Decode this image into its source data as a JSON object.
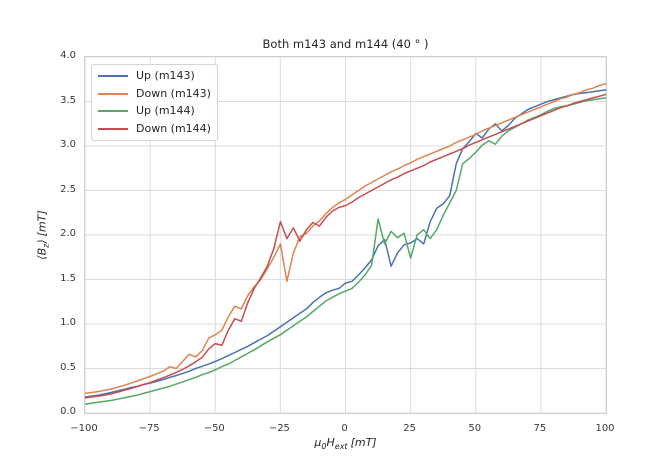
{
  "chart_data": {
    "type": "line",
    "title": "Both m143 and m144 (40 ° )",
    "xlabel": "μ0 H_ext [mT]",
    "ylabel": "⟨B_z⟩ [mT]",
    "xlabel_parts": {
      "mu": "μ",
      "mu_sub": "0",
      "H": "H",
      "H_sub": "ext",
      "unit": "[mT]"
    },
    "ylabel_parts": {
      "open": "⟨B",
      "B_sub": "z",
      "close": "⟩",
      "unit": "[mT]"
    },
    "xlim": [
      -100,
      100
    ],
    "ylim": [
      0.0,
      4.0
    ],
    "grid": true,
    "legend_position": "upper left",
    "style": {
      "grid_color": "#dcdcdc",
      "spine_color": "#cfcfcf",
      "text_color": "#262626",
      "tick_text_color": "#3a3a3a",
      "background": "#ffffff"
    },
    "xticks": {
      "values": [
        -100,
        -75,
        -50,
        -25,
        0,
        25,
        50,
        75,
        100
      ],
      "labels": [
        "−100",
        "−75",
        "−50",
        "−25",
        "0",
        "25",
        "50",
        "75",
        "100"
      ]
    },
    "yticks": {
      "values": [
        0.0,
        0.5,
        1.0,
        1.5,
        2.0,
        2.5,
        3.0,
        3.5,
        4.0
      ],
      "labels": [
        "0.0",
        "0.5",
        "1.0",
        "1.5",
        "2.0",
        "2.5",
        "3.0",
        "3.5",
        "4.0"
      ]
    },
    "x": [
      -100,
      -97.5,
      -95,
      -92.5,
      -90,
      -87.5,
      -85,
      -82.5,
      -80,
      -77.5,
      -75,
      -72.5,
      -70,
      -67.5,
      -65,
      -62.5,
      -60,
      -57.5,
      -55,
      -52.5,
      -50,
      -47.5,
      -45,
      -42.5,
      -40,
      -37.5,
      -35,
      -32.5,
      -30,
      -27.5,
      -25,
      -22.5,
      -20,
      -17.5,
      -15,
      -12.5,
      -10,
      -7.5,
      -5,
      -2.5,
      0,
      2.5,
      5,
      7.5,
      10,
      12.5,
      15,
      17.5,
      20,
      22.5,
      25,
      27.5,
      30,
      32.5,
      35,
      37.5,
      40,
      42.5,
      45,
      47.5,
      50,
      52.5,
      55,
      57.5,
      60,
      62.5,
      65,
      67.5,
      70,
      72.5,
      75,
      77.5,
      80,
      82.5,
      85,
      87.5,
      90,
      92.5,
      95,
      97.5,
      100
    ],
    "series": [
      {
        "name": "Up (m143)",
        "color": "#4c72b0",
        "values": [
          0.18,
          0.19,
          0.2,
          0.215,
          0.23,
          0.25,
          0.265,
          0.285,
          0.3,
          0.32,
          0.335,
          0.355,
          0.375,
          0.4,
          0.42,
          0.445,
          0.47,
          0.5,
          0.525,
          0.55,
          0.58,
          0.61,
          0.645,
          0.68,
          0.715,
          0.75,
          0.79,
          0.83,
          0.87,
          0.92,
          0.97,
          1.02,
          1.07,
          1.12,
          1.17,
          1.24,
          1.3,
          1.35,
          1.38,
          1.4,
          1.46,
          1.48,
          1.55,
          1.63,
          1.72,
          1.88,
          1.95,
          1.65,
          1.8,
          1.89,
          1.91,
          1.96,
          1.9,
          2.15,
          2.3,
          2.35,
          2.44,
          2.8,
          2.97,
          3.05,
          3.14,
          3.09,
          3.19,
          3.25,
          3.17,
          3.23,
          3.31,
          3.36,
          3.41,
          3.44,
          3.47,
          3.5,
          3.52,
          3.54,
          3.56,
          3.58,
          3.59,
          3.6,
          3.61,
          3.62,
          3.63
        ]
      },
      {
        "name": "Down (m143)",
        "color": "#dd8452",
        "values": [
          0.22,
          0.23,
          0.24,
          0.255,
          0.27,
          0.29,
          0.31,
          0.335,
          0.36,
          0.385,
          0.41,
          0.44,
          0.47,
          0.52,
          0.5,
          0.58,
          0.66,
          0.63,
          0.7,
          0.84,
          0.88,
          0.93,
          1.08,
          1.2,
          1.17,
          1.32,
          1.42,
          1.5,
          1.62,
          1.75,
          1.9,
          1.48,
          1.8,
          1.98,
          2.02,
          2.1,
          2.16,
          2.24,
          2.31,
          2.36,
          2.4,
          2.45,
          2.5,
          2.55,
          2.59,
          2.63,
          2.67,
          2.71,
          2.74,
          2.78,
          2.81,
          2.85,
          2.88,
          2.91,
          2.94,
          2.97,
          3.0,
          3.04,
          3.07,
          3.1,
          3.13,
          3.17,
          3.2,
          3.23,
          3.26,
          3.29,
          3.32,
          3.35,
          3.38,
          3.41,
          3.44,
          3.47,
          3.5,
          3.53,
          3.55,
          3.58,
          3.6,
          3.63,
          3.65,
          3.68,
          3.7
        ]
      },
      {
        "name": "Up (m144)",
        "color": "#55a868",
        "values": [
          0.1,
          0.11,
          0.12,
          0.13,
          0.14,
          0.155,
          0.17,
          0.185,
          0.2,
          0.22,
          0.24,
          0.26,
          0.28,
          0.3,
          0.325,
          0.35,
          0.375,
          0.4,
          0.43,
          0.455,
          0.485,
          0.52,
          0.55,
          0.59,
          0.63,
          0.67,
          0.71,
          0.755,
          0.8,
          0.84,
          0.88,
          0.93,
          0.98,
          1.03,
          1.08,
          1.14,
          1.2,
          1.26,
          1.3,
          1.34,
          1.37,
          1.4,
          1.47,
          1.55,
          1.66,
          2.18,
          1.9,
          2.04,
          1.97,
          2.02,
          1.74,
          2.0,
          2.06,
          1.96,
          2.06,
          2.22,
          2.36,
          2.5,
          2.8,
          2.86,
          2.93,
          3.01,
          3.06,
          3.02,
          3.11,
          3.17,
          3.21,
          3.25,
          3.29,
          3.32,
          3.35,
          3.39,
          3.42,
          3.44,
          3.45,
          3.47,
          3.49,
          3.51,
          3.52,
          3.53,
          3.54
        ]
      },
      {
        "name": "Down (m144)",
        "color": "#c44e52",
        "values": [
          0.17,
          0.18,
          0.19,
          0.2,
          0.215,
          0.235,
          0.255,
          0.275,
          0.295,
          0.32,
          0.34,
          0.37,
          0.395,
          0.425,
          0.455,
          0.49,
          0.53,
          0.575,
          0.625,
          0.72,
          0.78,
          0.76,
          0.93,
          1.06,
          1.03,
          1.24,
          1.4,
          1.52,
          1.65,
          1.85,
          2.15,
          1.96,
          2.08,
          1.93,
          2.06,
          2.14,
          2.1,
          2.2,
          2.27,
          2.31,
          2.33,
          2.37,
          2.42,
          2.46,
          2.5,
          2.54,
          2.58,
          2.62,
          2.65,
          2.69,
          2.72,
          2.75,
          2.78,
          2.82,
          2.85,
          2.88,
          2.91,
          2.94,
          2.97,
          3.01,
          3.04,
          3.07,
          3.1,
          3.13,
          3.16,
          3.19,
          3.22,
          3.25,
          3.28,
          3.31,
          3.34,
          3.37,
          3.4,
          3.43,
          3.45,
          3.48,
          3.5,
          3.52,
          3.54,
          3.56,
          3.58
        ]
      }
    ]
  }
}
